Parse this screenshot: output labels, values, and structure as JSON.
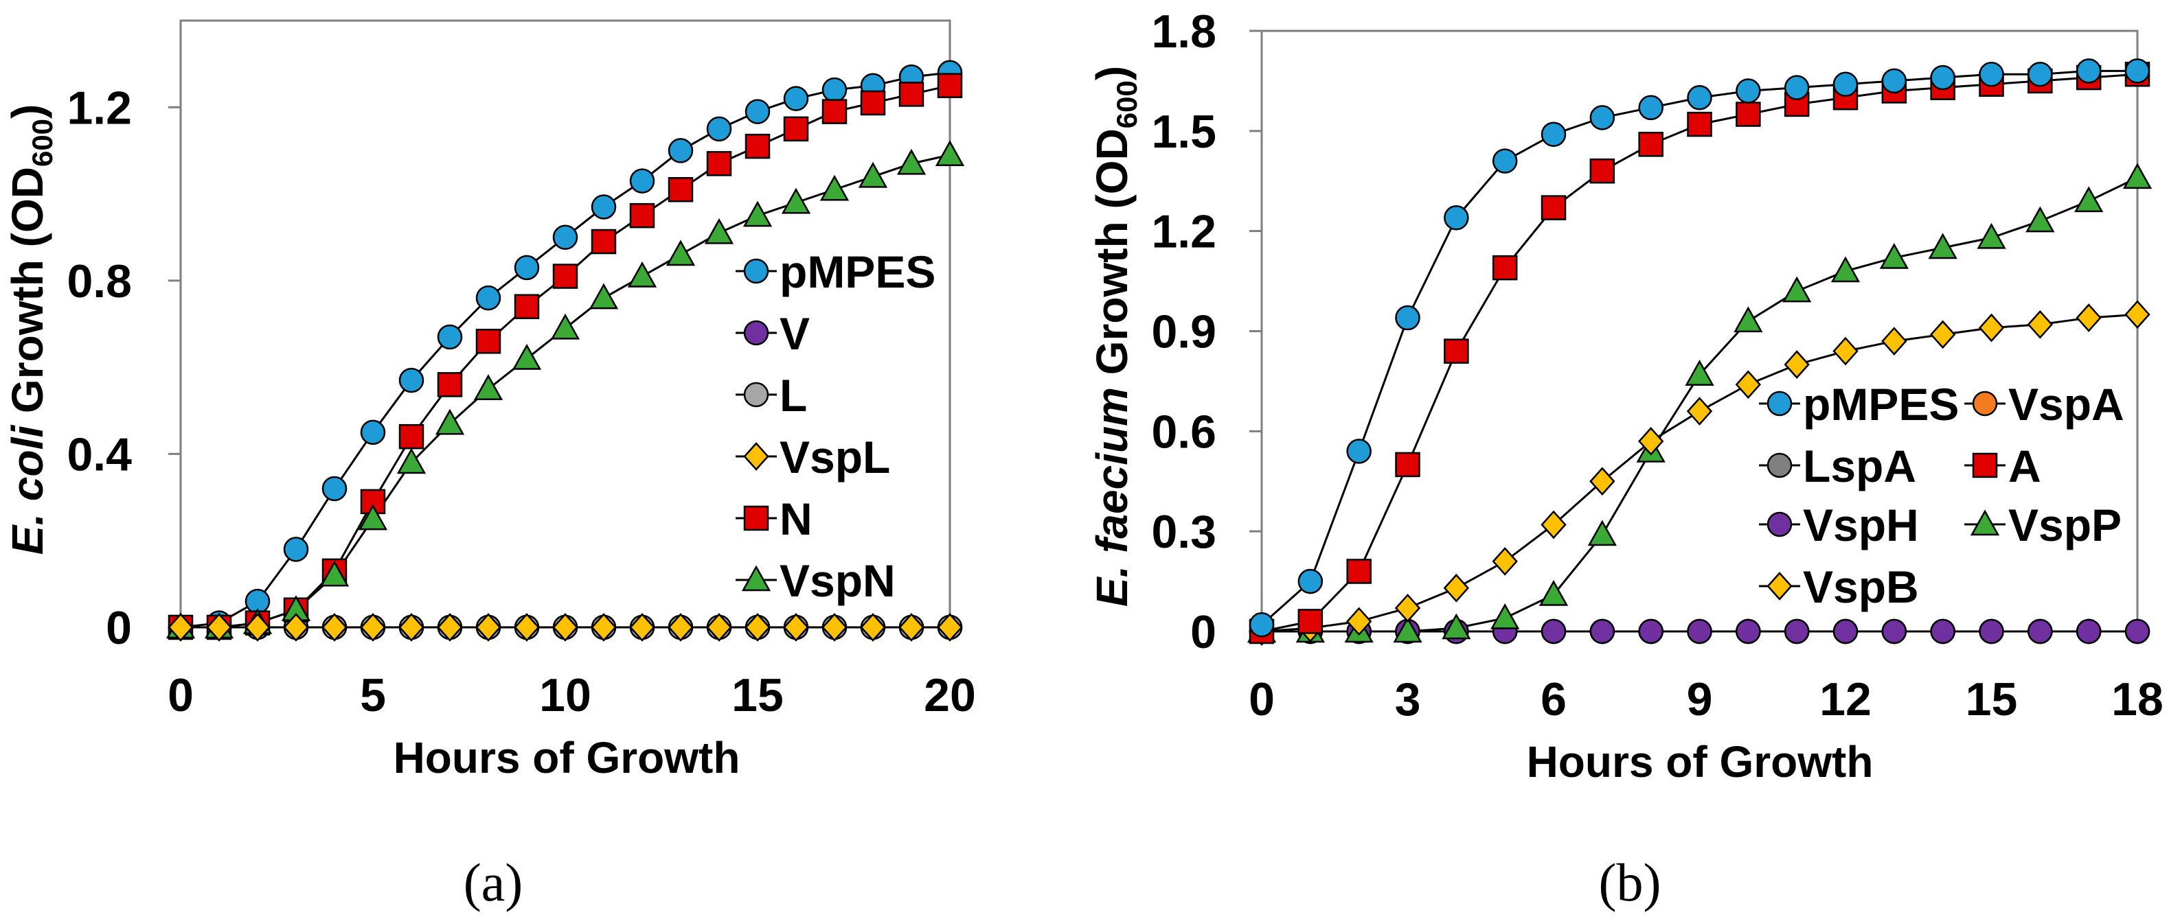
{
  "chart_data": [
    {
      "type": "line",
      "panel_label": "(a)",
      "title": "",
      "xlabel": "Hours of Growth",
      "ylabel": {
        "italic": "E. coli",
        "main": " Growth (OD",
        "sub": "600",
        "end": ")"
      },
      "xlim": [
        0,
        20
      ],
      "ylim": [
        0,
        1.4
      ],
      "xticks": [
        0,
        5,
        10,
        15,
        20
      ],
      "yticks": [
        0,
        0.4,
        0.8,
        1.2
      ],
      "ytick_labels": [
        "0",
        "0.4",
        "0.8",
        "1.2"
      ],
      "grid": false,
      "legend_position": "right-middle",
      "x": [
        0,
        1,
        2,
        3,
        4,
        5,
        6,
        7,
        8,
        9,
        10,
        11,
        12,
        13,
        14,
        15,
        16,
        17,
        18,
        19,
        20
      ],
      "series": [
        {
          "name": "pMPES",
          "marker": "circle",
          "color": "#1f9bd7",
          "values": [
            0,
            0.01,
            0.06,
            0.18,
            0.32,
            0.45,
            0.57,
            0.67,
            0.76,
            0.83,
            0.9,
            0.97,
            1.03,
            1.1,
            1.15,
            1.19,
            1.22,
            1.24,
            1.25,
            1.27,
            1.28
          ]
        },
        {
          "name": "V",
          "marker": "circle",
          "color": "#7030a0",
          "values": [
            0,
            0,
            0,
            0,
            0,
            0,
            0,
            0,
            0,
            0,
            0,
            0,
            0,
            0,
            0,
            0,
            0,
            0,
            0,
            0,
            0
          ]
        },
        {
          "name": "L",
          "marker": "circle",
          "color": "#a6a6a6",
          "values": [
            0,
            0,
            0,
            0,
            0,
            0,
            0,
            0,
            0,
            0,
            0,
            0,
            0,
            0,
            0,
            0,
            0,
            0,
            0,
            0,
            0
          ]
        },
        {
          "name": "N",
          "marker": "square",
          "color": "#e00000",
          "values": [
            0,
            0,
            0.01,
            0.04,
            0.13,
            0.29,
            0.44,
            0.56,
            0.66,
            0.74,
            0.81,
            0.89,
            0.95,
            1.01,
            1.07,
            1.11,
            1.15,
            1.19,
            1.21,
            1.23,
            1.25
          ]
        },
        {
          "name": "VspN",
          "marker": "triangle",
          "color": "#3aa935",
          "values": [
            0,
            0,
            0.01,
            0.04,
            0.12,
            0.25,
            0.38,
            0.47,
            0.55,
            0.62,
            0.69,
            0.76,
            0.81,
            0.86,
            0.91,
            0.95,
            0.98,
            1.01,
            1.04,
            1.07,
            1.09
          ]
        },
        {
          "name": "VspL",
          "marker": "diamond",
          "color": "#ffc000",
          "values": [
            0,
            0,
            0,
            0,
            0,
            0,
            0,
            0,
            0,
            0,
            0,
            0,
            0,
            0,
            0,
            0,
            0,
            0,
            0,
            0,
            0
          ]
        }
      ],
      "legend_order": [
        "pMPES",
        "V",
        "L",
        "VspL",
        "N",
        "VspN"
      ]
    },
    {
      "type": "line",
      "panel_label": "(b)",
      "title": "",
      "xlabel": "Hours of Growth",
      "ylabel": {
        "italic": "E. faecium",
        "main": " Growth (OD",
        "sub": "600",
        "end": ")"
      },
      "xlim": [
        0,
        18
      ],
      "ylim": [
        0,
        1.8
      ],
      "xticks": [
        0,
        3,
        6,
        9,
        12,
        15,
        18
      ],
      "yticks": [
        0,
        0.3,
        0.6,
        0.9,
        1.2,
        1.5,
        1.8
      ],
      "ytick_labels": [
        "0",
        "0.3",
        "0.6",
        "0.9",
        "1.2",
        "1.5",
        "1.8"
      ],
      "grid": false,
      "legend_position": "right-middle",
      "x": [
        0,
        1,
        2,
        3,
        4,
        5,
        6,
        7,
        8,
        9,
        10,
        11,
        12,
        13,
        14,
        15,
        16,
        17,
        18
      ],
      "series": [
        {
          "name": "VspA",
          "marker": "circle",
          "color": "#f47b20",
          "values": [
            0,
            0,
            0,
            0,
            0,
            0,
            0,
            0,
            0,
            0,
            0,
            0,
            0,
            0,
            0,
            0,
            0,
            0,
            0
          ]
        },
        {
          "name": "LspA",
          "marker": "circle",
          "color": "#808080",
          "values": [
            0,
            0,
            0,
            0,
            0,
            0,
            0,
            0,
            0,
            0,
            0,
            0,
            0,
            0,
            0,
            0,
            0,
            0,
            0
          ]
        },
        {
          "name": "VspH",
          "marker": "circle",
          "color": "#7030a0",
          "values": [
            0,
            0,
            0,
            0,
            0,
            0,
            0,
            0,
            0,
            0,
            0,
            0,
            0,
            0,
            0,
            0,
            0,
            0,
            0
          ]
        },
        {
          "name": "VspP",
          "marker": "triangle",
          "color": "#3aa935",
          "values": [
            0,
            0,
            0,
            0,
            0.01,
            0.04,
            0.11,
            0.29,
            0.54,
            0.77,
            0.93,
            1.02,
            1.08,
            1.12,
            1.15,
            1.18,
            1.23,
            1.29,
            1.36
          ]
        },
        {
          "name": "VspB",
          "marker": "diamond",
          "color": "#ffc000",
          "values": [
            0,
            0.01,
            0.03,
            0.07,
            0.13,
            0.21,
            0.32,
            0.45,
            0.57,
            0.66,
            0.74,
            0.8,
            0.84,
            0.87,
            0.89,
            0.91,
            0.92,
            0.94,
            0.95
          ]
        },
        {
          "name": "A",
          "marker": "square",
          "color": "#e00000",
          "values": [
            0,
            0.03,
            0.18,
            0.5,
            0.84,
            1.09,
            1.27,
            1.38,
            1.46,
            1.52,
            1.55,
            1.58,
            1.6,
            1.62,
            1.63,
            1.64,
            1.65,
            1.66,
            1.67
          ]
        },
        {
          "name": "pMPES",
          "marker": "circle",
          "color": "#1f9bd7",
          "values": [
            0.02,
            0.15,
            0.54,
            0.94,
            1.24,
            1.41,
            1.49,
            1.54,
            1.57,
            1.6,
            1.62,
            1.63,
            1.64,
            1.65,
            1.66,
            1.67,
            1.67,
            1.68,
            1.68
          ]
        }
      ],
      "legend_order": [
        "pMPES",
        "VspA",
        "LspA",
        "A",
        "VspH",
        "VspP",
        "VspB"
      ]
    }
  ]
}
